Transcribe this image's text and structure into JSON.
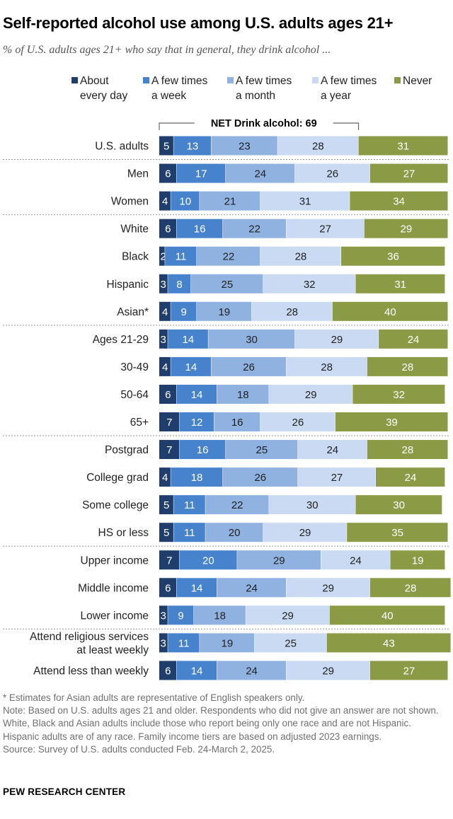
{
  "title": "Self-reported alcohol use among U.S. adults ages 21+",
  "subtitle": "% of U.S. adults ages 21+ who say that in general, they drink alcohol ...",
  "chart_data": {
    "type": "bar",
    "orientation": "horizontal",
    "stacked": true,
    "net_annotation": "NET Drink alcohol: 69",
    "series": [
      {
        "name": "About every day",
        "legend_lines": [
          "About",
          "every day"
        ],
        "color": "#1f3e6b",
        "text_color": "#ffffff",
        "values": [
          5,
          6,
          4,
          6,
          2,
          3,
          4,
          3,
          4,
          6,
          7,
          7,
          4,
          5,
          5,
          7,
          6,
          3,
          3,
          6
        ]
      },
      {
        "name": "A few times a week",
        "legend_lines": [
          "A few times",
          "a week"
        ],
        "color": "#4683cc",
        "text_color": "#ffffff",
        "values": [
          13,
          17,
          10,
          16,
          11,
          8,
          9,
          14,
          14,
          14,
          12,
          16,
          18,
          11,
          11,
          20,
          14,
          9,
          11,
          14
        ]
      },
      {
        "name": "A few times a month",
        "legend_lines": [
          "A few times",
          "a month"
        ],
        "color": "#8fb2e0",
        "text_color": "#222222",
        "values": [
          23,
          24,
          21,
          22,
          22,
          25,
          19,
          30,
          26,
          18,
          16,
          25,
          26,
          22,
          20,
          29,
          24,
          18,
          19,
          24
        ]
      },
      {
        "name": "A few times a year",
        "legend_lines": [
          "A few times",
          "a year"
        ],
        "color": "#c9daf2",
        "text_color": "#222222",
        "values": [
          28,
          26,
          31,
          27,
          28,
          32,
          28,
          29,
          28,
          29,
          26,
          24,
          27,
          30,
          29,
          24,
          29,
          29,
          25,
          29
        ]
      },
      {
        "name": "Never",
        "legend_lines": [
          "Never"
        ],
        "color": "#8a9a45",
        "text_color": "#ffffff",
        "values": [
          31,
          27,
          34,
          29,
          36,
          31,
          40,
          24,
          28,
          32,
          39,
          28,
          24,
          30,
          35,
          19,
          28,
          40,
          43,
          27
        ]
      }
    ],
    "categories": [
      {
        "label": "U.S. adults",
        "group": 0
      },
      {
        "label": "Men",
        "group": 1
      },
      {
        "label": "Women",
        "group": 1
      },
      {
        "label": "White",
        "group": 2
      },
      {
        "label": "Black",
        "group": 2
      },
      {
        "label": "Hispanic",
        "group": 2
      },
      {
        "label": "Asian*",
        "group": 2
      },
      {
        "label": "Ages 21-29",
        "group": 3
      },
      {
        "label": "30-49",
        "group": 3
      },
      {
        "label": "50-64",
        "group": 3
      },
      {
        "label": "65+",
        "group": 3
      },
      {
        "label": "Postgrad",
        "group": 4
      },
      {
        "label": "College grad",
        "group": 4
      },
      {
        "label": "Some college",
        "group": 4
      },
      {
        "label": "HS or less",
        "group": 4
      },
      {
        "label": "Upper income",
        "group": 5
      },
      {
        "label": "Middle income",
        "group": 5
      },
      {
        "label": "Lower income",
        "group": 5
      },
      {
        "label": "Attend religious services at least weekly",
        "label_lines": [
          "Attend religious services",
          "at least weekly"
        ],
        "group": 6
      },
      {
        "label": "Attend less than weekly",
        "group": 6
      }
    ],
    "xlim": [
      0,
      100
    ]
  },
  "notes": {
    "asterisk": "* Estimates for Asian adults are representative of English speakers only.",
    "note": "Note: Based on U.S. adults ages 21 and older. Respondents who did not give an answer are not shown. White, Black and Asian adults include those who report being only one race and are not Hispanic. Hispanic adults are of any race. Family income tiers are based on adjusted 2023 earnings.",
    "source": "Source: Survey of U.S. adults conducted Feb. 24-March 2, 2025."
  },
  "brand": "PEW RESEARCH CENTER"
}
